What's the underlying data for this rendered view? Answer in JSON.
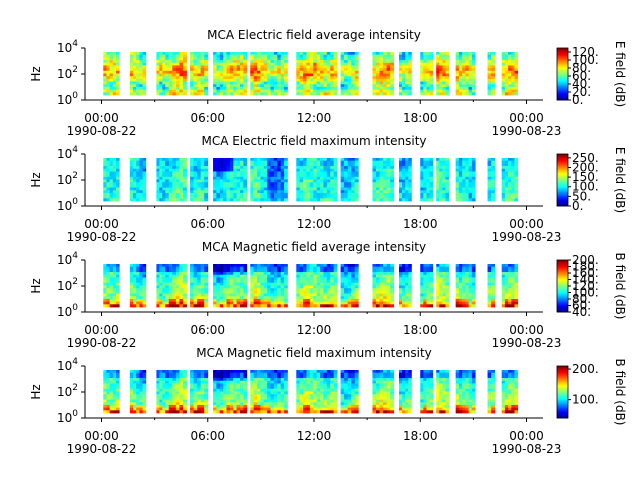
{
  "chart_data": [
    {
      "type": "heatmap",
      "title": "MCA  Electric field average intensity",
      "ylabel": "Hz",
      "y_scale": "log",
      "y_ticks": [
        {
          "base": "10",
          "exp": "0"
        },
        {
          "base": "10",
          "exp": "2"
        },
        {
          "base": "10",
          "exp": "4"
        }
      ],
      "x_ticks": [
        {
          "time": "00:00",
          "date": "1990-08-22"
        },
        {
          "time": "06:00",
          "date": ""
        },
        {
          "time": "12:00",
          "date": ""
        },
        {
          "time": "18:00",
          "date": ""
        },
        {
          "time": "00:00",
          "date": "1990-08-23"
        }
      ],
      "colorbar": {
        "label": "E field (dB)",
        "ticks": [
          "0.",
          "20.",
          "40.",
          "60.",
          "80.",
          "100.",
          "120."
        ],
        "range": [
          0,
          130
        ]
      },
      "character": "mid",
      "colormap": "jet"
    },
    {
      "type": "heatmap",
      "title": "MCA  Electric field maximum intensity",
      "ylabel": "Hz",
      "y_scale": "log",
      "y_ticks": [
        {
          "base": "10",
          "exp": "0"
        },
        {
          "base": "10",
          "exp": "2"
        },
        {
          "base": "10",
          "exp": "4"
        }
      ],
      "x_ticks": [
        {
          "time": "00:00",
          "date": "1990-08-22"
        },
        {
          "time": "06:00",
          "date": ""
        },
        {
          "time": "12:00",
          "date": ""
        },
        {
          "time": "18:00",
          "date": ""
        },
        {
          "time": "00:00",
          "date": "1990-08-23"
        }
      ],
      "colorbar": {
        "label": "E field (dB)",
        "ticks": [
          "0.",
          "50.",
          "100.",
          "150.",
          "200.",
          "250."
        ],
        "range": [
          0,
          270
        ]
      },
      "character": "low",
      "colormap": "jet"
    },
    {
      "type": "heatmap",
      "title": "MCA  Magnetic field average intensity",
      "ylabel": "Hz",
      "y_scale": "log",
      "y_ticks": [
        {
          "base": "10",
          "exp": "0"
        },
        {
          "base": "10",
          "exp": "2"
        },
        {
          "base": "10",
          "exp": "4"
        }
      ],
      "x_ticks": [
        {
          "time": "00:00",
          "date": "1990-08-22"
        },
        {
          "time": "06:00",
          "date": ""
        },
        {
          "time": "12:00",
          "date": ""
        },
        {
          "time": "18:00",
          "date": ""
        },
        {
          "time": "00:00",
          "date": "1990-08-23"
        }
      ],
      "colorbar": {
        "label": "B field (dB)",
        "ticks": [
          "40.",
          "60.",
          "80.",
          "100.",
          "120.",
          "140.",
          "160.",
          "180.",
          "200."
        ],
        "range": [
          40,
          200
        ]
      },
      "character": "mag",
      "colormap": "jet"
    },
    {
      "type": "heatmap",
      "title": "MCA  Magnetic field maximum intensity",
      "ylabel": "Hz",
      "y_scale": "log",
      "y_ticks": [
        {
          "base": "10",
          "exp": "0"
        },
        {
          "base": "10",
          "exp": "2"
        },
        {
          "base": "10",
          "exp": "4"
        }
      ],
      "x_ticks": [
        {
          "time": "00:00",
          "date": "1990-08-22"
        },
        {
          "time": "06:00",
          "date": ""
        },
        {
          "time": "12:00",
          "date": ""
        },
        {
          "time": "18:00",
          "date": ""
        },
        {
          "time": "00:00",
          "date": "1990-08-23"
        }
      ],
      "colorbar": {
        "label": "B field (dB)",
        "ticks": [
          "100.",
          "200."
        ],
        "range": [
          40,
          210
        ]
      },
      "character": "mag",
      "colormap": "jet"
    }
  ],
  "data_segments_hours": [
    [
      0.1,
      1.0
    ],
    [
      1.6,
      2.5
    ],
    [
      3.1,
      3.6
    ],
    [
      3.6,
      4.8
    ],
    [
      5.0,
      6.0
    ],
    [
      6.3,
      8.2
    ],
    [
      8.4,
      10.5
    ],
    [
      11.0,
      13.3
    ],
    [
      13.5,
      14.5
    ],
    [
      15.3,
      16.5
    ],
    [
      16.8,
      17.5
    ],
    [
      18.0,
      18.7
    ],
    [
      18.9,
      19.6
    ],
    [
      20.0,
      21.1
    ],
    [
      21.8,
      22.2
    ],
    [
      22.6,
      23.5
    ]
  ]
}
